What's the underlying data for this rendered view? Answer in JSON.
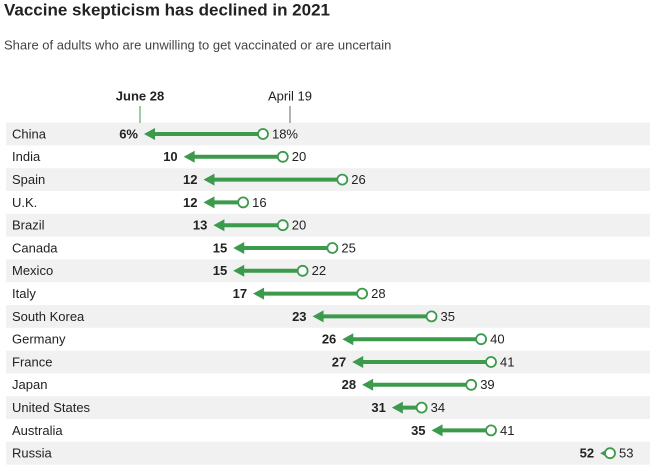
{
  "chart_data": {
    "type": "arrow",
    "title": "Vaccine skepticism has declined in 2021",
    "subtitle": "Share of adults who are unwilling to get vaccinated or are uncertain",
    "categories": [
      "China",
      "India",
      "Spain",
      "U.K.",
      "Brazil",
      "Canada",
      "Mexico",
      "Italy",
      "South Korea",
      "Germany",
      "France",
      "Japan",
      "United States",
      "Australia",
      "Russia"
    ],
    "series": [
      {
        "name": "June 28",
        "color": "#3b9a4b",
        "values": [
          6,
          10,
          12,
          12,
          13,
          15,
          15,
          17,
          23,
          26,
          27,
          28,
          31,
          35,
          52
        ],
        "value_labels": [
          "6%",
          "10",
          "12",
          "12",
          "13",
          "15",
          "15",
          "17",
          "23",
          "26",
          "27",
          "28",
          "31",
          "35",
          "52"
        ]
      },
      {
        "name": "April 19",
        "color": "#666666",
        "values": [
          18,
          20,
          26,
          16,
          20,
          25,
          22,
          28,
          35,
          40,
          41,
          39,
          34,
          41,
          53
        ],
        "value_labels": [
          "18%",
          "20",
          "26",
          "16",
          "20",
          "25",
          "22",
          "28",
          "35",
          "40",
          "41",
          "39",
          "34",
          "41",
          "53"
        ]
      }
    ]
  }
}
